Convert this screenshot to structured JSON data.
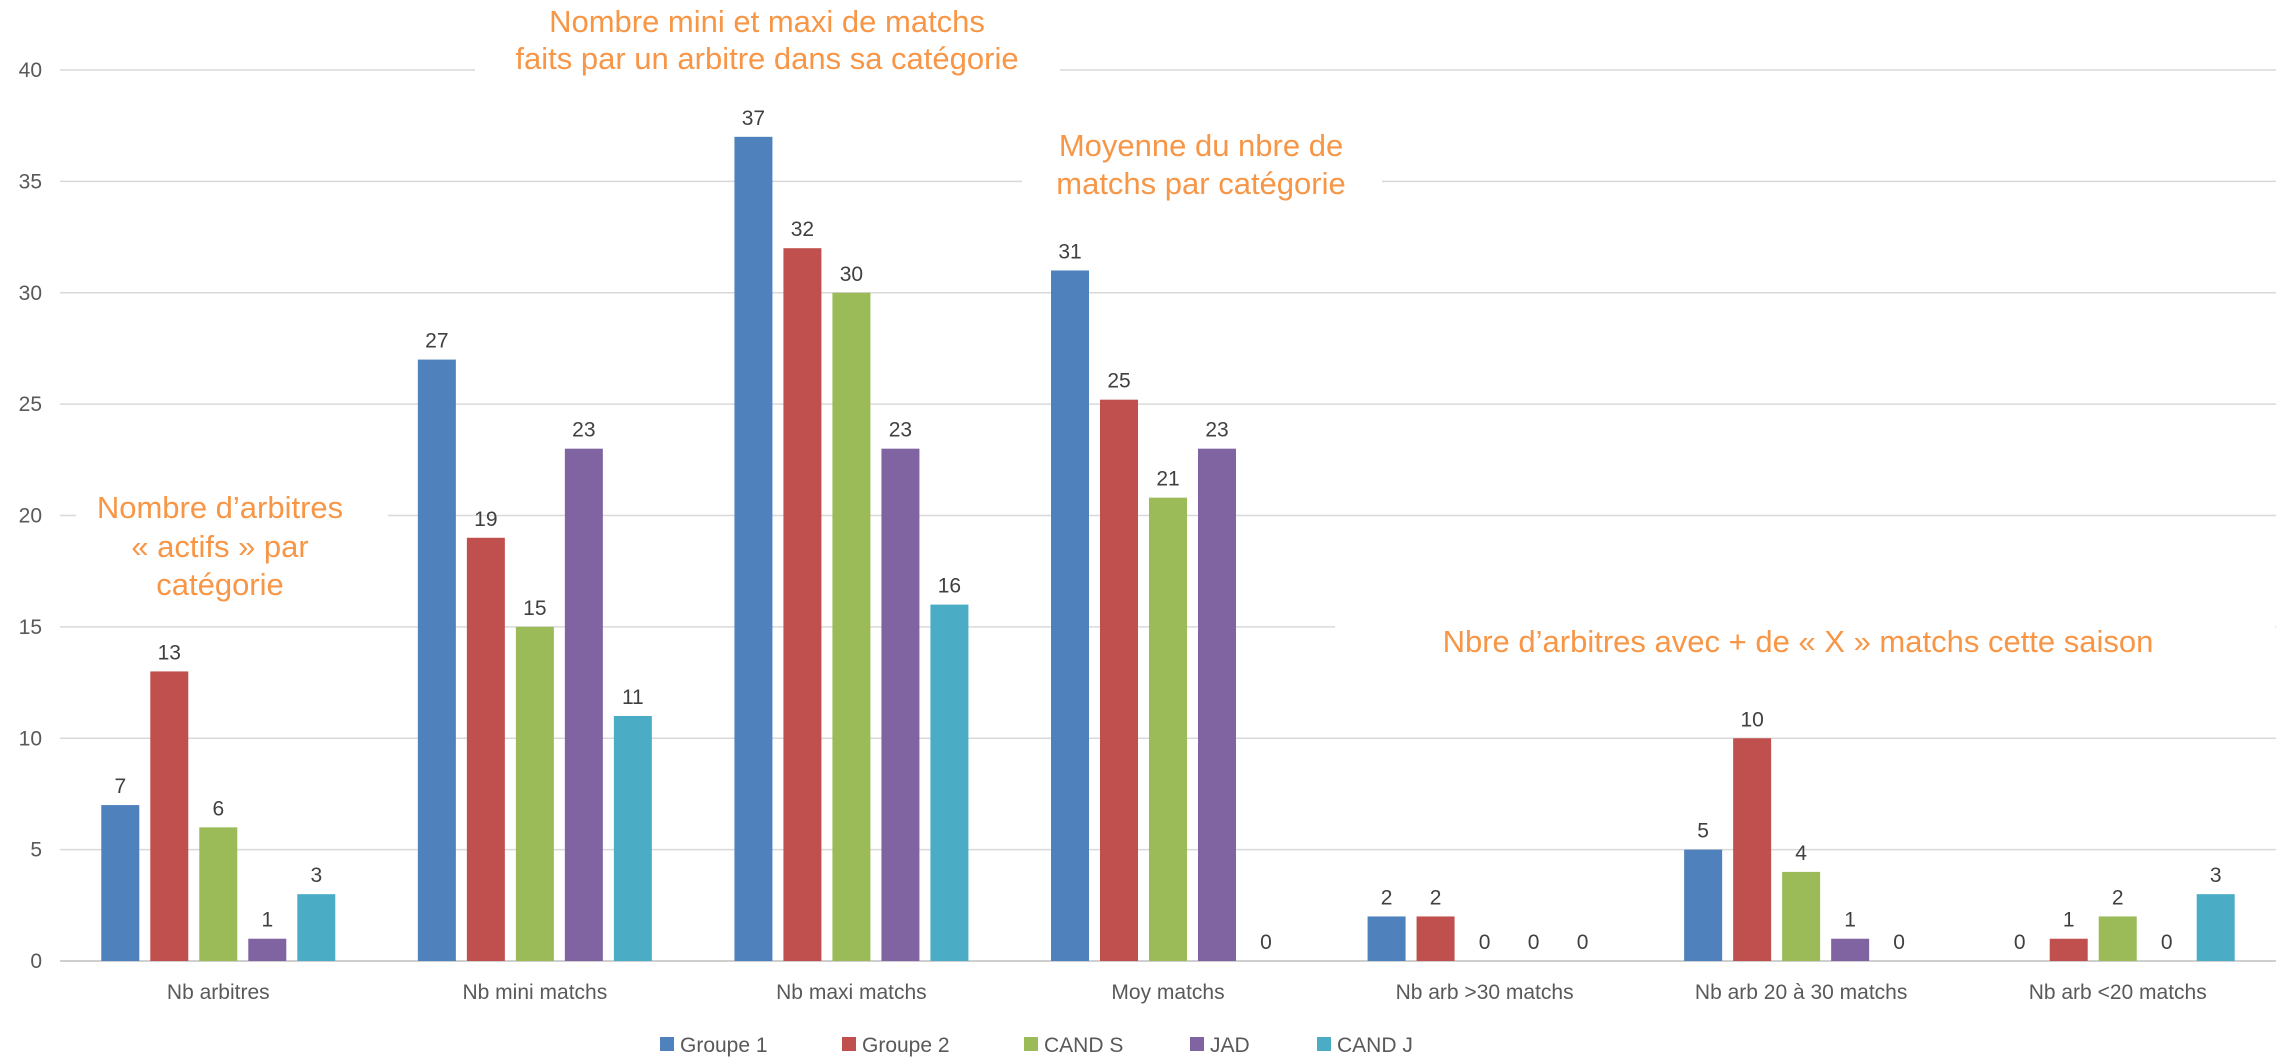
{
  "chart_data": {
    "type": "bar",
    "categories": [
      "Nb arbitres",
      "Nb mini matchs",
      "Nb maxi matchs",
      "Moy matchs",
      "Nb arb >30 matchs",
      "Nb arb 20 à 30 matchs",
      "Nb arb <20 matchs"
    ],
    "series": [
      {
        "name": "Groupe 1",
        "color": "#4f81bd",
        "values": [
          7,
          27,
          37,
          31,
          2,
          5,
          0
        ]
      },
      {
        "name": "Groupe 2",
        "color": "#c0504d",
        "values": [
          13,
          19,
          32,
          25.2,
          2,
          10,
          1
        ]
      },
      {
        "name": "CAND S",
        "color": "#9bbb59",
        "values": [
          6,
          15,
          30,
          20.8,
          0,
          4,
          2
        ]
      },
      {
        "name": "JAD",
        "color": "#8064a2",
        "values": [
          1,
          23,
          23,
          23,
          0,
          1,
          0
        ]
      },
      {
        "name": "CAND J",
        "color": "#4bacc6",
        "values": [
          3,
          11,
          16,
          0,
          0,
          0,
          3
        ]
      }
    ],
    "data_labels": [
      [
        "7",
        "27",
        "37",
        "31",
        "2",
        "5",
        "0"
      ],
      [
        "13",
        "19",
        "32",
        "25",
        "2",
        "10",
        "1"
      ],
      [
        "6",
        "15",
        "30",
        "21",
        "0",
        "4",
        "2"
      ],
      [
        "1",
        "23",
        "23",
        "23",
        "0",
        "1",
        "0"
      ],
      [
        "3",
        "11",
        "16",
        "0",
        "0",
        "0",
        "3"
      ]
    ],
    "ylim": [
      0,
      40
    ],
    "yticks": [
      0,
      5,
      10,
      15,
      20,
      25,
      30,
      35,
      40
    ],
    "grid": true,
    "legend_position": "bottom",
    "annotations": [
      {
        "lines": [
          "Nombre mini et maxi de matchs",
          "faits par un arbitre dans sa catégorie"
        ]
      },
      {
        "lines": [
          "Moyenne du nbre de",
          "matchs par catégorie"
        ]
      },
      {
        "lines": [
          "Nombre d’arbitres",
          "« actifs » par",
          "catégorie"
        ]
      },
      {
        "lines": [
          "Nbre d’arbitres avec + de « X » matchs cette saison"
        ]
      }
    ],
    "annotation_color": "#f79646"
  }
}
